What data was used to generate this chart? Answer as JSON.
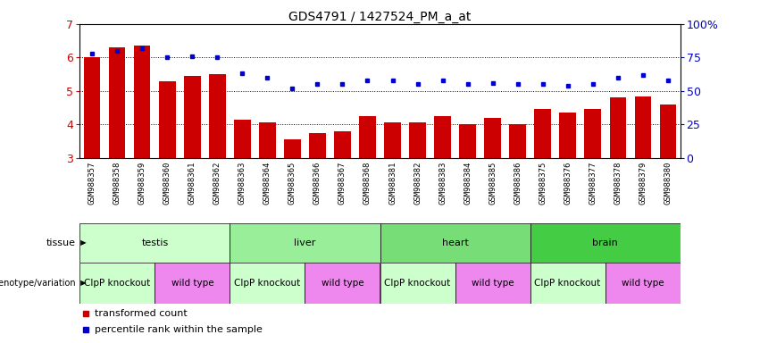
{
  "title": "GDS4791 / 1427524_PM_a_at",
  "samples": [
    "GSM988357",
    "GSM988358",
    "GSM988359",
    "GSM988360",
    "GSM988361",
    "GSM988362",
    "GSM988363",
    "GSM988364",
    "GSM988365",
    "GSM988366",
    "GSM988367",
    "GSM988368",
    "GSM988381",
    "GSM988382",
    "GSM988383",
    "GSM988384",
    "GSM988385",
    "GSM988386",
    "GSM988375",
    "GSM988376",
    "GSM988377",
    "GSM988378",
    "GSM988379",
    "GSM988380"
  ],
  "bar_values": [
    6.0,
    6.3,
    6.35,
    5.3,
    5.45,
    5.5,
    4.15,
    4.05,
    3.55,
    3.75,
    3.8,
    4.25,
    4.05,
    4.05,
    4.25,
    4.0,
    4.2,
    4.0,
    4.45,
    4.35,
    4.45,
    4.8,
    4.82,
    4.6
  ],
  "dot_values": [
    78,
    80,
    82,
    75,
    76,
    75,
    63,
    60,
    52,
    55,
    55,
    58,
    58,
    55,
    58,
    55,
    56,
    55,
    55,
    54,
    55,
    60,
    62,
    58
  ],
  "ylim": [
    3,
    7
  ],
  "yticks": [
    3,
    4,
    5,
    6,
    7
  ],
  "y2lim": [
    0,
    100
  ],
  "y2ticks": [
    0,
    25,
    50,
    75,
    100
  ],
  "bar_color": "#cc0000",
  "dot_color": "#0000cc",
  "tissues": [
    {
      "label": "testis",
      "start": 0,
      "end": 6,
      "color": "#ccffcc"
    },
    {
      "label": "liver",
      "start": 6,
      "end": 12,
      "color": "#99ee99"
    },
    {
      "label": "heart",
      "start": 12,
      "end": 18,
      "color": "#77dd77"
    },
    {
      "label": "brain",
      "start": 18,
      "end": 24,
      "color": "#44cc44"
    }
  ],
  "genotypes": [
    {
      "label": "ClpP knockout",
      "start": 0,
      "end": 3,
      "color": "#ccffcc"
    },
    {
      "label": "wild type",
      "start": 3,
      "end": 6,
      "color": "#ee88ee"
    },
    {
      "label": "ClpP knockout",
      "start": 6,
      "end": 9,
      "color": "#ccffcc"
    },
    {
      "label": "wild type",
      "start": 9,
      "end": 12,
      "color": "#ee88ee"
    },
    {
      "label": "ClpP knockout",
      "start": 12,
      "end": 15,
      "color": "#ccffcc"
    },
    {
      "label": "wild type",
      "start": 15,
      "end": 18,
      "color": "#ee88ee"
    },
    {
      "label": "ClpP knockout",
      "start": 18,
      "end": 21,
      "color": "#ccffcc"
    },
    {
      "label": "wild type",
      "start": 21,
      "end": 24,
      "color": "#ee88ee"
    }
  ],
  "legend_items": [
    {
      "label": "transformed count",
      "color": "#cc0000"
    },
    {
      "label": "percentile rank within the sample",
      "color": "#0000cc"
    }
  ],
  "grid_lines": [
    4,
    5,
    6
  ],
  "xticklabel_fontsize": 6.5,
  "ytick_fontsize": 9,
  "title_fontsize": 10,
  "tissue_fontsize": 8,
  "geno_fontsize": 7.5,
  "legend_fontsize": 8
}
